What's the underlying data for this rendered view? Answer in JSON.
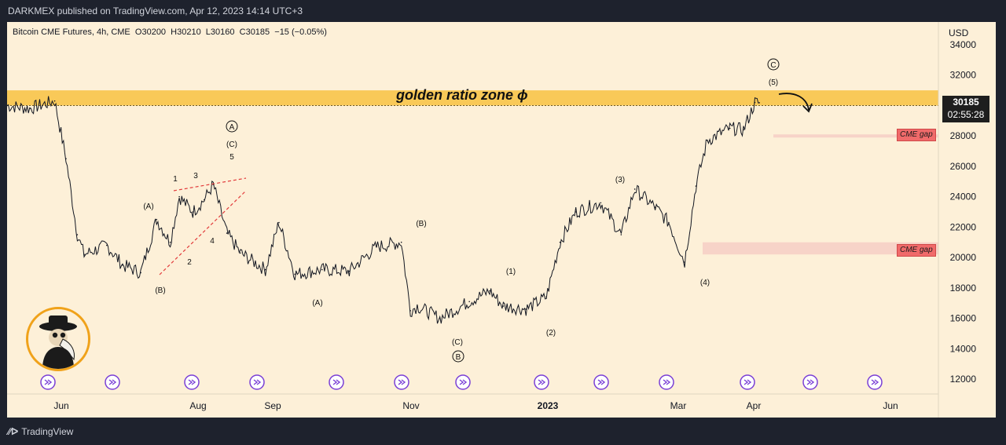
{
  "header": {
    "publish_line": "DARKMEX published on TradingView.com, Apr 12, 2023 14:14 UTC+3"
  },
  "legend": {
    "symbol": "Bitcoin CME Futures, 4h, CME",
    "ohlc": "O30200  H30210  L30160  C30185  −15 (−0.05%)"
  },
  "axis": {
    "currency": "USD",
    "price_ticks": [
      "34000",
      "32000",
      "30000",
      "28000",
      "26000",
      "24000",
      "22000",
      "20000",
      "18000",
      "16000",
      "14000",
      "12000"
    ],
    "time_ticks": [
      "Jun",
      "Aug",
      "Sep",
      "Nov",
      "2023",
      "Mar",
      "Apr",
      "Jun"
    ]
  },
  "last_price": {
    "value": "30185",
    "countdown": "02:55:28"
  },
  "annotations": {
    "golden_zone_label": "golden ratio zone  ϕ",
    "cme_gap_label": "CME gap",
    "waves": [
      "A",
      "(C)",
      "5",
      "1",
      "3",
      "(A)",
      "4",
      "2",
      "(B)",
      "(A)",
      "(B)",
      "(C)",
      "B",
      "(1)",
      "(2)",
      "(3)",
      "(4)",
      "(5)",
      "C"
    ]
  },
  "colors": {
    "golden_zone": "#f8c44a",
    "gap_zone": "#f7d3c8",
    "gap_label": "#f06a6a",
    "background": "#fdf0d8",
    "candles": "#131722",
    "event_icons": "#7a3fd6"
  },
  "footer": {
    "brand": "TradingView"
  },
  "chart_data": {
    "type": "line",
    "title": "Bitcoin CME Futures, 4h, CME",
    "ylabel": "USD",
    "ylim": [
      11000,
      35000
    ],
    "xlim": [
      "2022-05-15",
      "2023-06-30"
    ],
    "grid": false,
    "x": [
      "2022-05-15",
      "2022-05-25",
      "2022-06-05",
      "2022-06-10",
      "2022-06-15",
      "2022-06-18",
      "2022-06-28",
      "2022-07-05",
      "2022-07-13",
      "2022-07-20",
      "2022-07-26",
      "2022-07-30",
      "2022-08-05",
      "2022-08-10",
      "2022-08-14",
      "2022-08-20",
      "2022-08-26",
      "2022-09-06",
      "2022-09-12",
      "2022-09-19",
      "2022-10-01",
      "2022-10-13",
      "2022-10-25",
      "2022-11-05",
      "2022-11-09",
      "2022-11-12",
      "2022-11-22",
      "2022-12-05",
      "2022-12-14",
      "2022-12-20",
      "2022-12-30",
      "2023-01-08",
      "2023-01-14",
      "2023-01-21",
      "2023-02-01",
      "2023-02-10",
      "2023-02-16",
      "2023-02-25",
      "2023-03-03",
      "2023-03-10",
      "2023-03-15",
      "2023-03-20",
      "2023-03-30",
      "2023-04-05",
      "2023-04-10",
      "2023-04-12"
    ],
    "values": [
      30000,
      29800,
      30300,
      26500,
      21500,
      20200,
      20800,
      19500,
      19000,
      22500,
      21000,
      24000,
      23000,
      23800,
      24800,
      21600,
      20300,
      19200,
      22300,
      18900,
      19200,
      19100,
      20700,
      21000,
      16500,
      16800,
      16000,
      17100,
      17800,
      16800,
      16600,
      17400,
      21000,
      23000,
      23600,
      21500,
      24500,
      23300,
      22300,
      19700,
      24700,
      27700,
      28500,
      28400,
      30200,
      30185
    ],
    "series": [
      {
        "name": "Bitcoin CME Futures, 4h, CME",
        "values": [
          30000,
          29800,
          30300,
          26500,
          21500,
          20200,
          20800,
          19500,
          19000,
          22500,
          21000,
          24000,
          23000,
          23800,
          24800,
          21600,
          20300,
          19200,
          22300,
          18900,
          19200,
          19100,
          20700,
          21000,
          16500,
          16800,
          16000,
          17100,
          17800,
          16800,
          16600,
          17400,
          21000,
          23000,
          23600,
          21500,
          24500,
          23300,
          22300,
          19700,
          24700,
          27700,
          28500,
          28400,
          30200,
          30185
        ]
      }
    ],
    "ohlc_last": {
      "open": 30200,
      "high": 30210,
      "low": 30160,
      "close": 30185,
      "change": -15,
      "change_pct": -0.05
    },
    "golden_zone": [
      30000,
      31000
    ],
    "cme_gaps": [
      [
        28000,
        28100
      ],
      [
        20200,
        21000
      ]
    ]
  }
}
